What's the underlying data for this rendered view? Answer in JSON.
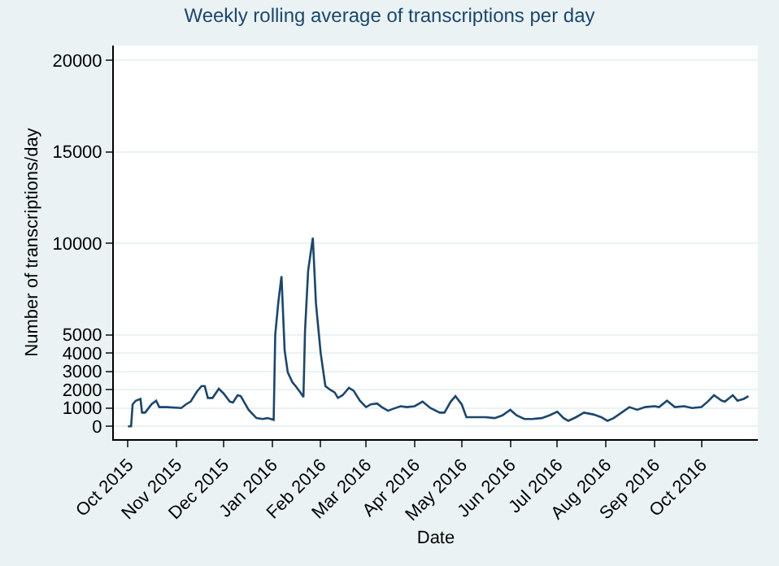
{
  "chart_data": {
    "type": "line",
    "title": "Weekly rolling average of transcriptions per day",
    "xlabel": "Date",
    "ylabel": "Number of transcriptions/day",
    "x": [
      "2015-10-01",
      "2015-10-03",
      "2015-10-04",
      "2015-10-06",
      "2015-10-09",
      "2015-10-10",
      "2015-10-12",
      "2015-10-16",
      "2015-10-19",
      "2015-10-21",
      "2015-10-26",
      "2015-11-04",
      "2015-11-07",
      "2015-11-10",
      "2015-11-14",
      "2015-11-17",
      "2015-11-19",
      "2015-11-21",
      "2015-11-24",
      "2015-11-28",
      "2015-12-01",
      "2015-12-05",
      "2015-12-07",
      "2015-12-10",
      "2015-12-12",
      "2015-12-17",
      "2015-12-22",
      "2015-12-26",
      "2015-12-29",
      "2016-01-02",
      "2016-01-03",
      "2016-01-05",
      "2016-01-07",
      "2016-01-09",
      "2016-01-11",
      "2016-01-14",
      "2016-01-16",
      "2016-01-19",
      "2016-01-21",
      "2016-01-22",
      "2016-01-24",
      "2016-01-27",
      "2016-01-29",
      "2016-02-01",
      "2016-02-04",
      "2016-02-07",
      "2016-02-10",
      "2016-02-12",
      "2016-02-15",
      "2016-02-19",
      "2016-02-22",
      "2016-02-26",
      "2016-03-01",
      "2016-03-04",
      "2016-03-08",
      "2016-03-11",
      "2016-03-15",
      "2016-03-18",
      "2016-03-23",
      "2016-03-27",
      "2016-04-01",
      "2016-04-06",
      "2016-04-11",
      "2016-04-17",
      "2016-04-20",
      "2016-04-24",
      "2016-04-27",
      "2016-05-01",
      "2016-05-04",
      "2016-05-09",
      "2016-05-16",
      "2016-05-22",
      "2016-05-27",
      "2016-06-01",
      "2016-06-05",
      "2016-06-10",
      "2016-06-15",
      "2016-06-21",
      "2016-06-26",
      "2016-07-01",
      "2016-07-05",
      "2016-07-08",
      "2016-07-13",
      "2016-07-18",
      "2016-07-24",
      "2016-07-29",
      "2016-08-02",
      "2016-08-06",
      "2016-08-11",
      "2016-08-16",
      "2016-08-21",
      "2016-08-26",
      "2016-09-01",
      "2016-09-04",
      "2016-09-09",
      "2016-09-14",
      "2016-09-20",
      "2016-09-25",
      "2016-10-01",
      "2016-10-05",
      "2016-10-09",
      "2016-10-14",
      "2016-10-16",
      "2016-10-21",
      "2016-10-24",
      "2016-10-28",
      "2016-10-31"
    ],
    "series": [
      {
        "color": "#1a476f",
        "values": [
          0,
          0,
          1200,
          1400,
          1500,
          750,
          750,
          1200,
          1400,
          1050,
          1050,
          1000,
          1200,
          1350,
          1900,
          2200,
          2200,
          1550,
          1550,
          2050,
          1800,
          1350,
          1300,
          1700,
          1650,
          900,
          450,
          400,
          450,
          350,
          5000,
          6800,
          8200,
          4150,
          2950,
          2400,
          2200,
          1850,
          1600,
          5200,
          8500,
          10300,
          6700,
          4000,
          2200,
          2000,
          1850,
          1550,
          1700,
          2100,
          1950,
          1400,
          1050,
          1200,
          1250,
          1050,
          850,
          950,
          1100,
          1050,
          1100,
          1350,
          1000,
          750,
          750,
          1350,
          1650,
          1200,
          500,
          500,
          500,
          450,
          600,
          900,
          600,
          400,
          400,
          450,
          600,
          800,
          450,
          300,
          500,
          750,
          650,
          500,
          300,
          450,
          750,
          1050,
          900,
          1050,
          1100,
          1050,
          1400,
          1050,
          1100,
          1000,
          1050,
          1350,
          1700,
          1400,
          1350,
          1700,
          1400,
          1500,
          1650
        ]
      }
    ],
    "xlim": [
      "2015-09-22",
      "2016-11-06"
    ],
    "xticks": [
      {
        "value": "2015-10-01",
        "label": "Oct 2015"
      },
      {
        "value": "2015-11-01",
        "label": "Nov 2015"
      },
      {
        "value": "2015-12-01",
        "label": "Dec 2015"
      },
      {
        "value": "2016-01-01",
        "label": "Jan 2016"
      },
      {
        "value": "2016-02-01",
        "label": "Feb 2016"
      },
      {
        "value": "2016-03-01",
        "label": "Mar 2016"
      },
      {
        "value": "2016-04-01",
        "label": "Apr 2016"
      },
      {
        "value": "2016-05-01",
        "label": "May 2016"
      },
      {
        "value": "2016-06-01",
        "label": "Jun 2016"
      },
      {
        "value": "2016-07-01",
        "label": "Jul 2016"
      },
      {
        "value": "2016-08-01",
        "label": "Aug 2016"
      },
      {
        "value": "2016-09-01",
        "label": "Sep 2016"
      },
      {
        "value": "2016-10-01",
        "label": "Oct 2016"
      }
    ],
    "ylim": [
      -700,
      20800
    ],
    "yticks": [
      0,
      1000,
      2000,
      3000,
      4000,
      5000,
      10000,
      15000,
      20000
    ],
    "grid": "y",
    "marker": "none",
    "line_style": "solid"
  }
}
